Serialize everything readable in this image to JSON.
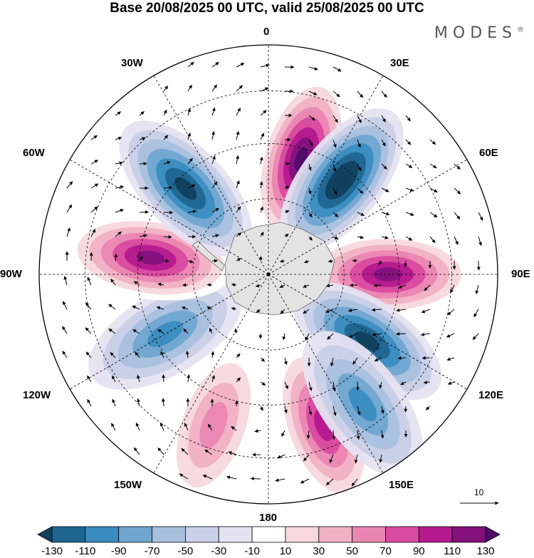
{
  "title": "Base 20/08/2025 00 UTC, valid 25/08/2025 00 UTC",
  "brand": "MODES",
  "brand_mark": "®",
  "map": {
    "projection": "south-polar-stereographic",
    "longitude_labels": {
      "lon_0": "0",
      "lon_30e": "30E",
      "lon_60e": "60E",
      "lon_90e": "90E",
      "lon_120e": "120E",
      "lon_150e": "150E",
      "lon_180": "180",
      "lon_150w": "150W",
      "lon_120w": "120W",
      "lon_90w": "90W",
      "lon_60w": "60W",
      "lon_30w": "30W"
    },
    "reference_vector_label": "10"
  },
  "colorbar": {
    "labels": [
      "-130",
      "-110",
      "-90",
      "-70",
      "-50",
      "-30",
      "-10",
      "10",
      "30",
      "50",
      "70",
      "90",
      "110",
      "130"
    ],
    "colors": [
      "#12405e",
      "#1f6690",
      "#3a8cc0",
      "#6fa6d0",
      "#a8c0de",
      "#c8cfe6",
      "#e6e3f1",
      "#ffffff",
      "#f7d8de",
      "#f1b1c4",
      "#ea86b2",
      "#da4aa0",
      "#b4198e",
      "#82117c",
      "#4f0c6b"
    ]
  },
  "anomaly_fields": [
    {
      "sign": "positive",
      "peak": 130,
      "lon": 16,
      "lat_span": "upper"
    },
    {
      "sign": "negative",
      "peak": -130,
      "lon": 38,
      "lat_span": "upper"
    },
    {
      "sign": "positive",
      "peak": 110,
      "lon": 90,
      "lat_span": "upper"
    },
    {
      "sign": "negative",
      "peak": -110,
      "lon": 124,
      "lat_span": "upper"
    },
    {
      "sign": "positive",
      "peak": 90,
      "lon": 160,
      "lat_span": "lower"
    },
    {
      "sign": "negative",
      "peak": -70,
      "lon": 144,
      "lat_span": "lower"
    },
    {
      "sign": "positive",
      "peak": 50,
      "lon": 200,
      "lat_span": "lower"
    },
    {
      "sign": "negative",
      "peak": -70,
      "lon": 240,
      "lat_span": "upper"
    },
    {
      "sign": "positive",
      "peak": 110,
      "lon": 278,
      "lat_span": "upper"
    },
    {
      "sign": "negative",
      "peak": -110,
      "lon": 316,
      "lat_span": "upper"
    }
  ]
}
